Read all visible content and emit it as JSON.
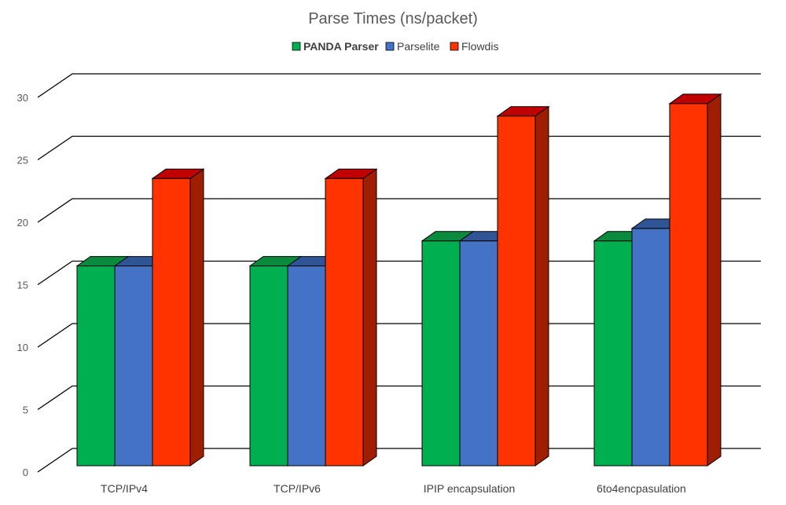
{
  "chart_data": {
    "type": "bar",
    "title": "Parse Times (ns/packet)",
    "categories": [
      "TCP/IPv4",
      "TCP/IPv6",
      "IPIP encapsulation",
      "6to4encpasulation"
    ],
    "series": [
      {
        "name": "PANDA Parser",
        "values": [
          16,
          16,
          18,
          18
        ],
        "color": "#00b050",
        "side_color": "#0a7a36",
        "top_color": "#0a8a3c",
        "legend_bold": true
      },
      {
        "name": "Parselite",
        "values": [
          16,
          16,
          18,
          19
        ],
        "color": "#4472c4",
        "side_color": "#2f528f",
        "top_color": "#2f5597",
        "legend_bold": false
      },
      {
        "name": "Flowdis",
        "values": [
          23,
          23,
          28,
          29
        ],
        "color": "#ff3300",
        "side_color": "#a01e00",
        "top_color": "#c00000",
        "legend_bold": false
      }
    ],
    "ylim": [
      0,
      30
    ],
    "yticks": [
      0,
      5,
      10,
      15,
      20,
      25,
      30
    ],
    "xlabel": "",
    "ylabel": "",
    "grid": true,
    "legend_position": "top-center",
    "style": "3d-column"
  }
}
